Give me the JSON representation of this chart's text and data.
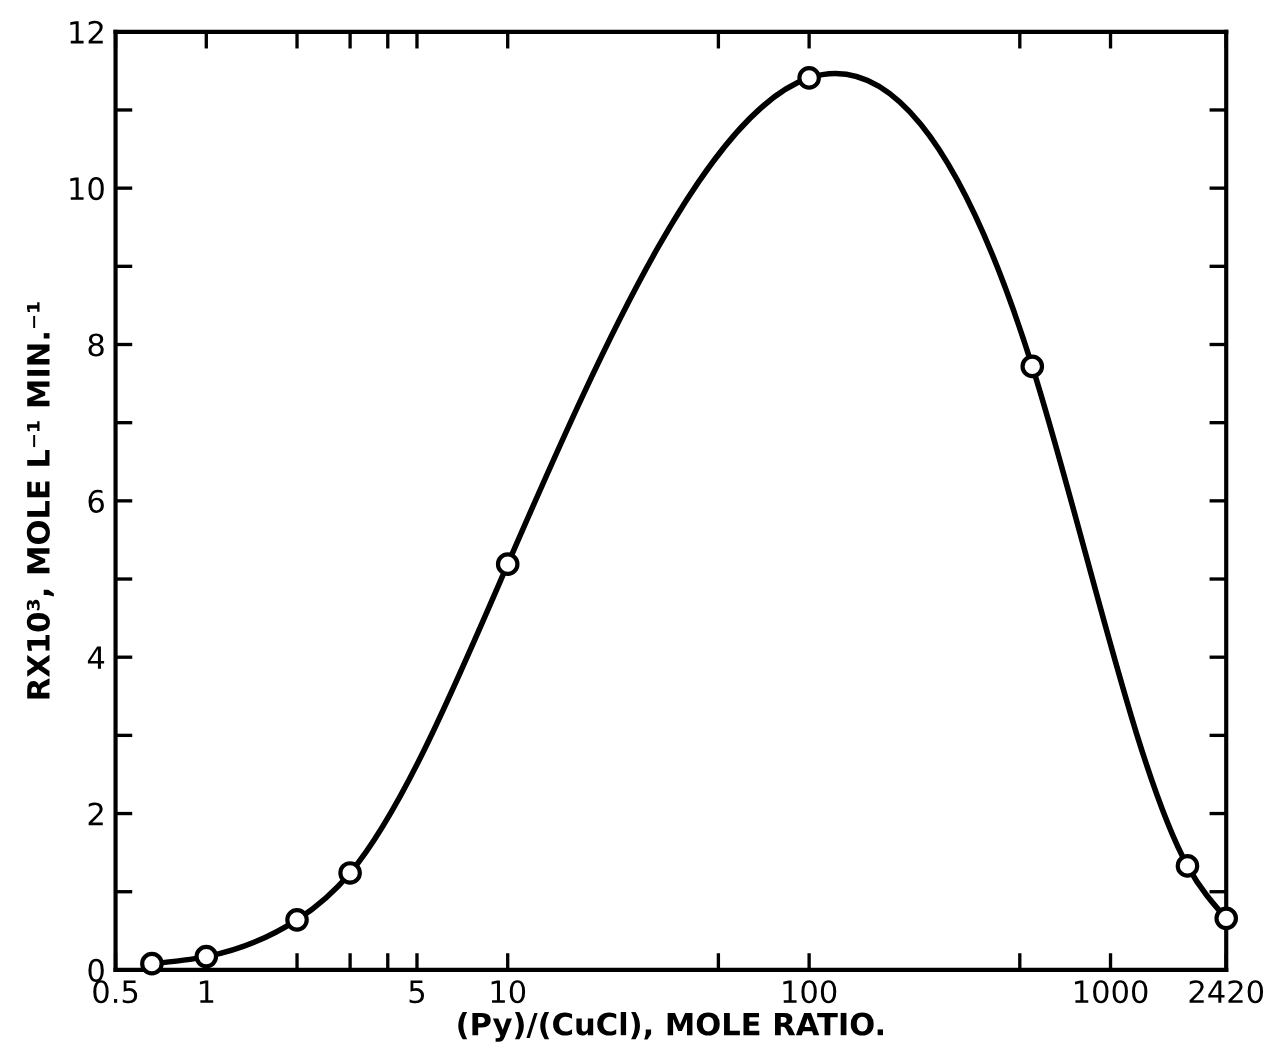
{
  "chart_data": {
    "type": "line",
    "xlabel": "(Py)/(CuCl), MOLE RATIO.",
    "ylabel": "RX10³, MOLE L⁻¹ MIN.⁻¹",
    "x": [
      0.66,
      1,
      2,
      3,
      10,
      100,
      550,
      1800,
      2420
    ],
    "values": [
      0.08,
      0.17,
      0.64,
      1.24,
      5.19,
      11.41,
      7.72,
      1.33,
      0.66
    ],
    "color": "#000000",
    "marker": "circle",
    "line_style": "solid",
    "log": "x",
    "grid": false,
    "xlim": [
      0.5,
      2420
    ],
    "xticks": [
      0.5,
      1,
      {
        "value": 2,
        "label": null
      },
      {
        "value": 3,
        "label": null
      },
      {
        "value": 4,
        "label": null
      },
      5,
      10,
      {
        "value": 50,
        "label": null
      },
      100,
      {
        "value": 500,
        "label": null
      },
      1000,
      2420
    ],
    "ylim": [
      0,
      12
    ],
    "yticks": [
      0,
      {
        "value": 1,
        "label": null
      },
      2,
      {
        "value": 3,
        "label": null
      },
      4,
      {
        "value": 5,
        "label": null
      },
      6,
      {
        "value": 7,
        "label": null
      },
      8,
      {
        "value": 9,
        "label": null
      },
      10,
      {
        "value": 11,
        "label": null
      },
      12
    ]
  }
}
